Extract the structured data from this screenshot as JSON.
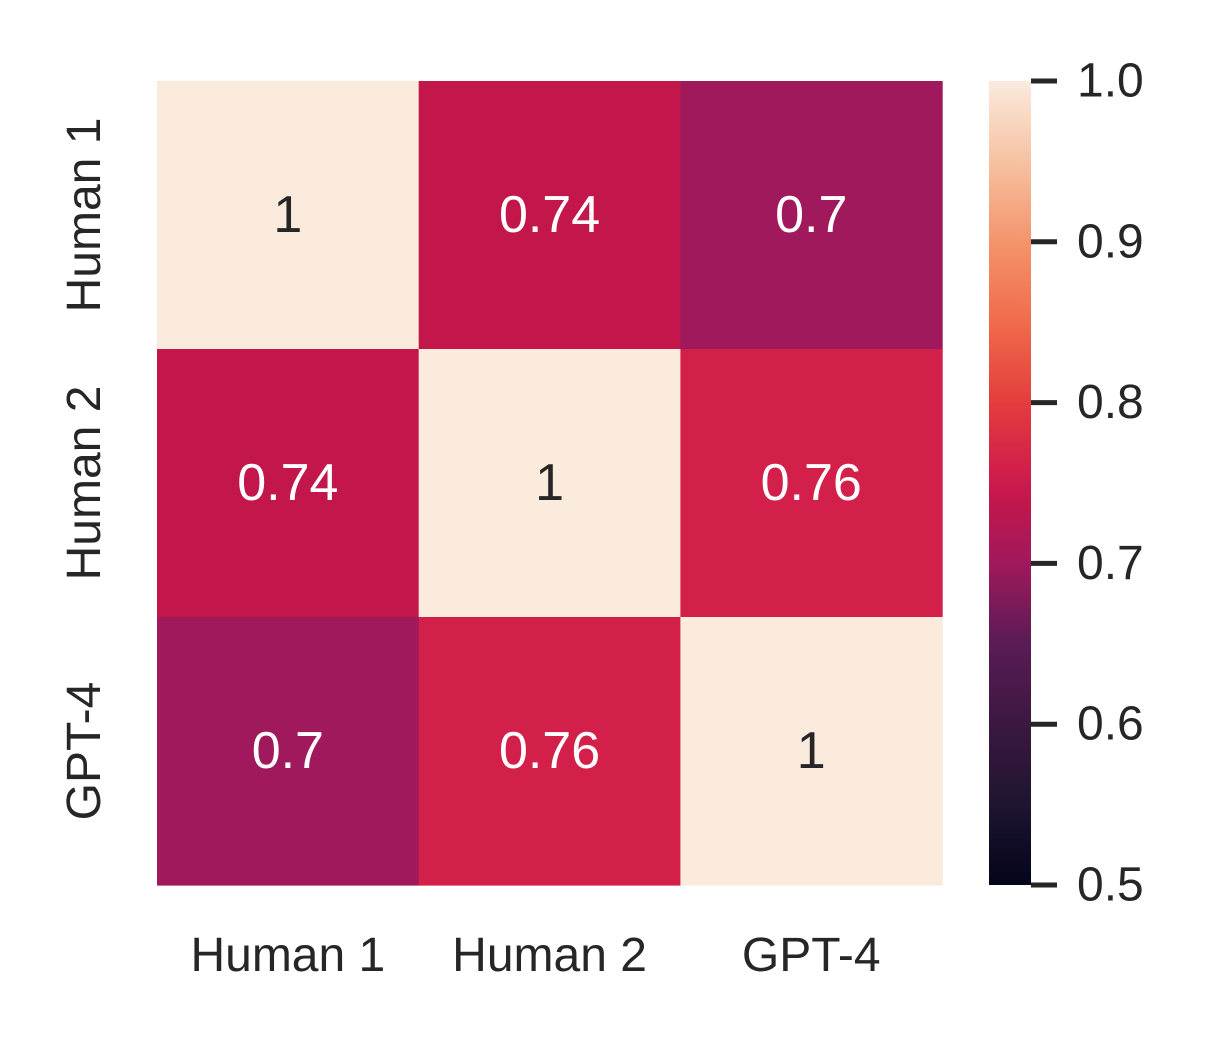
{
  "chart_data": {
    "type": "heatmap",
    "title": "",
    "xlabel": "",
    "ylabel": "",
    "x_categories": [
      "Human 1",
      "Human 2",
      "GPT-4"
    ],
    "y_categories": [
      "Human 1",
      "Human 2",
      "GPT-4"
    ],
    "values": [
      [
        1,
        0.74,
        0.7
      ],
      [
        0.74,
        1,
        0.76
      ],
      [
        0.7,
        0.76,
        1
      ]
    ],
    "annotations": [
      [
        "1",
        "0.74",
        "0.7"
      ],
      [
        "0.74",
        "1",
        "0.76"
      ],
      [
        "0.7",
        "0.76",
        "1"
      ]
    ],
    "colormap": "rocket",
    "colorbar": {
      "vmin": 0.5,
      "vmax": 1.0,
      "ticks": [
        1.0,
        0.9,
        0.8,
        0.7,
        0.6,
        0.5
      ],
      "tick_labels": [
        "1.0",
        "0.9",
        "0.8",
        "0.7",
        "0.6",
        "0.5"
      ],
      "placement": "right"
    },
    "colormap_stops": [
      {
        "v": 0.5,
        "color": "#03051a"
      },
      {
        "v": 0.55,
        "color": "#1f1431"
      },
      {
        "v": 0.6,
        "color": "#3b1840"
      },
      {
        "v": 0.65,
        "color": "#5a1b55"
      },
      {
        "v": 0.7,
        "color": "#a0195c"
      },
      {
        "v": 0.74,
        "color": "#c3174c"
      },
      {
        "v": 0.76,
        "color": "#d2204a"
      },
      {
        "v": 0.8,
        "color": "#e43d3d"
      },
      {
        "v": 0.85,
        "color": "#f06b4b"
      },
      {
        "v": 0.9,
        "color": "#f4946c"
      },
      {
        "v": 0.95,
        "color": "#f6c2a2"
      },
      {
        "v": 1.0,
        "color": "#faebdd"
      }
    ],
    "annotation_colors": {
      "dark": "#262626",
      "light": "#ffffff"
    }
  }
}
